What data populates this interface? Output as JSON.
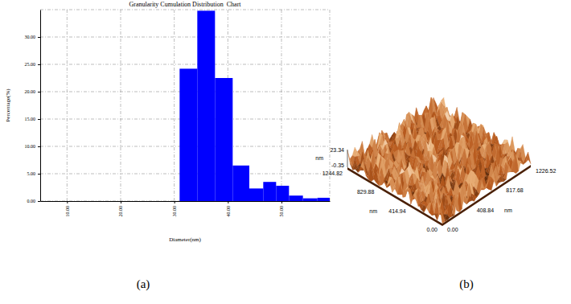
{
  "chart_data": {
    "type": "histogram",
    "title": "Granularity Cumulation Distribution  Chart",
    "x_label": "Diameter(nm)",
    "y_label": "Percentage(%)",
    "bins": [
      31,
      34.3,
      37.6,
      40.9,
      44,
      46.6,
      49,
      51.4,
      54,
      56.7,
      59
    ],
    "values": [
      24.2,
      34.8,
      22.5,
      6.5,
      2.3,
      3.5,
      2.8,
      1.0,
      0.5,
      0.6
    ],
    "color": "#0000ff",
    "xlim": [
      5,
      59
    ],
    "ylim": [
      0,
      35
    ],
    "xticks": [
      {
        "value": 10,
        "label": "10.00"
      },
      {
        "value": 20,
        "label": "20.00"
      },
      {
        "value": 30,
        "label": "30.00"
      },
      {
        "value": 40,
        "label": "40.00"
      },
      {
        "value": 50,
        "label": "50.00"
      }
    ],
    "yticks": [
      {
        "value": 0,
        "label": "0.00"
      },
      {
        "value": 5,
        "label": "5.00"
      },
      {
        "value": 10,
        "label": "10.00"
      },
      {
        "value": 15,
        "label": "15.00"
      },
      {
        "value": 20,
        "label": "20.00"
      },
      {
        "value": 25,
        "label": "25.00"
      },
      {
        "value": 30,
        "label": "30.00"
      }
    ],
    "grid": true
  },
  "panel_labels": [
    "(a)",
    "(b)"
  ],
  "surface_image": {
    "z_unit": "nm",
    "z_max": "23.34",
    "z_min": "-0.35",
    "x_unit": "nm",
    "x_ticks": [
      "0.00",
      "414.94",
      "829.88",
      "1244.82"
    ],
    "y_unit": "nm",
    "y_ticks": [
      "0.00",
      "408.84",
      "817.68",
      "1226.52"
    ]
  }
}
